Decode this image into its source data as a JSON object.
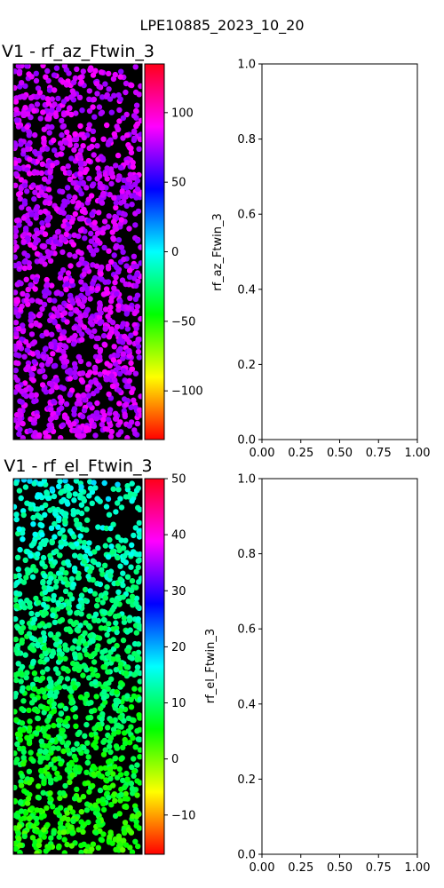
{
  "figure": {
    "suptitle": "LPE10885_2023_10_20"
  },
  "chart_data": [
    {
      "type": "scatter",
      "title": "V1 - rf_az_Ftwin_3",
      "background": "#000000",
      "marker_color_example": "#ff00ff",
      "colorbar": {
        "label": "rf_az_Ftwin_3",
        "range": [
          -135,
          135
        ],
        "ticks": [
          -100,
          -50,
          0,
          50,
          100
        ],
        "tick_labels": [
          "−100",
          "−50",
          "0",
          "50",
          "100"
        ],
        "colormap": "hsv"
      },
      "point_value_range": [
        110,
        135
      ]
    },
    {
      "type": "line",
      "title": "",
      "xlim": [
        0,
        1
      ],
      "ylim": [
        0,
        1
      ],
      "xticks": [
        "0.00",
        "0.25",
        "0.50",
        "0.75",
        "1.00"
      ],
      "yticks": [
        "0.0",
        "0.2",
        "0.4",
        "0.6",
        "0.8",
        "1.0"
      ],
      "series": []
    },
    {
      "type": "scatter",
      "title": "V1 - rf_el_Ftwin_3",
      "background": "#000000",
      "marker_color_example": "#00ff80",
      "colorbar": {
        "label": "rf_el_Ftwin_3",
        "range": [
          -17,
          50
        ],
        "ticks": [
          -10,
          0,
          10,
          20,
          30,
          40,
          50
        ],
        "tick_labels": [
          "−10",
          "0",
          "10",
          "20",
          "30",
          "40",
          "50"
        ],
        "colormap": "hsv"
      },
      "point_value_range": [
        5,
        22
      ]
    },
    {
      "type": "line",
      "title": "",
      "xlim": [
        0,
        1
      ],
      "ylim": [
        0,
        1
      ],
      "xticks": [
        "0.00",
        "0.25",
        "0.50",
        "0.75",
        "1.00"
      ],
      "yticks": [
        "0.0",
        "0.2",
        "0.4",
        "0.6",
        "0.8",
        "1.0"
      ],
      "series": []
    }
  ]
}
